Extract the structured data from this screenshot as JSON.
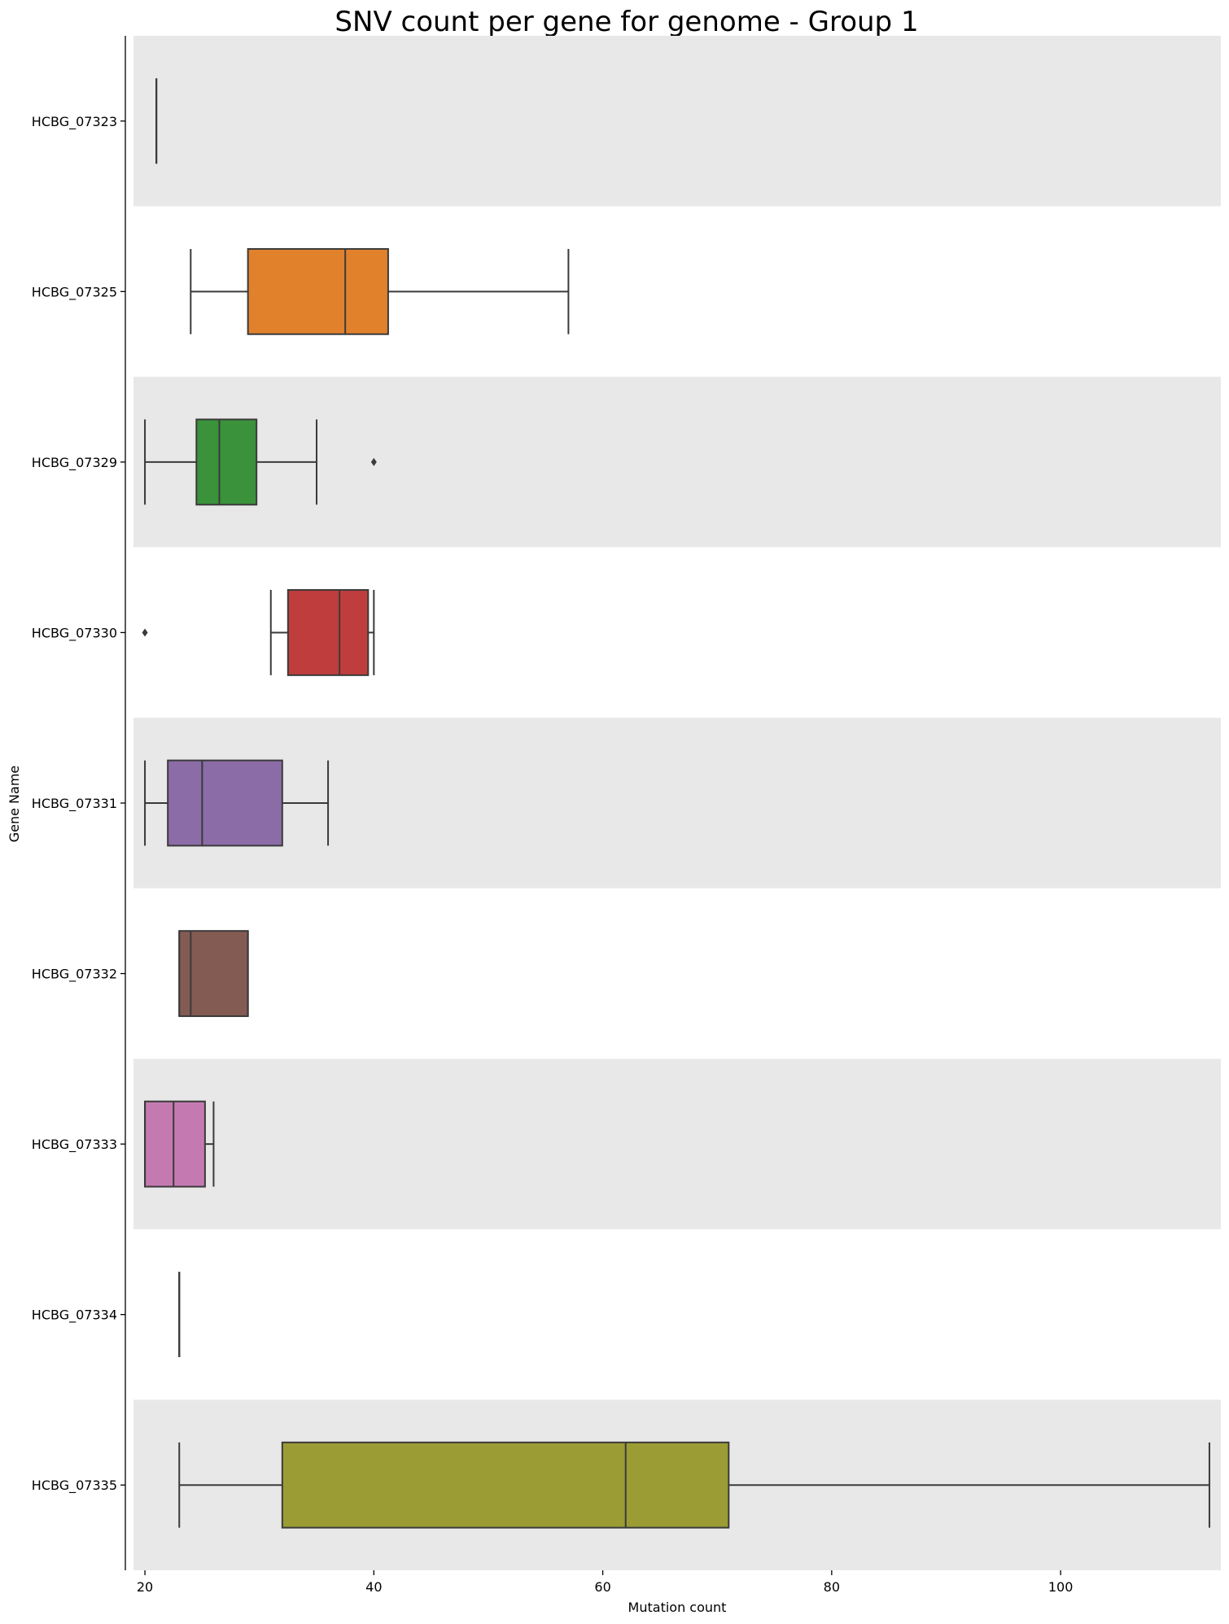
{
  "chart_data": {
    "type": "box",
    "title": "SNV count per gene for genome - Group 1",
    "xlabel": "Mutation count",
    "ylabel": "Gene Name",
    "xlim": [
      19,
      114
    ],
    "xticks": [
      20,
      40,
      60,
      80,
      100
    ],
    "orientation": "horizontal",
    "band_colors": [
      "#e8e8e8",
      "#ffffff"
    ],
    "box_edge_color": "#3a3a3a",
    "categories": [
      "HCBG_07323",
      "HCBG_07325",
      "HCBG_07329",
      "HCBG_07330",
      "HCBG_07331",
      "HCBG_07332",
      "HCBG_07333",
      "HCBG_07334",
      "HCBG_07335"
    ],
    "boxes": [
      {
        "gene": "HCBG_07323",
        "whisker_low": 21,
        "q1": 21,
        "median": 21,
        "q3": 21,
        "whisker_high": 21,
        "outliers": [],
        "color": "#1f77b4"
      },
      {
        "gene": "HCBG_07325",
        "whisker_low": 24,
        "q1": 29,
        "median": 37.5,
        "q3": 41.25,
        "whisker_high": 57,
        "outliers": [],
        "color": "#e1812c"
      },
      {
        "gene": "HCBG_07329",
        "whisker_low": 20,
        "q1": 24.5,
        "median": 26.5,
        "q3": 29.75,
        "whisker_high": 35,
        "outliers": [
          40
        ],
        "color": "#3a923a"
      },
      {
        "gene": "HCBG_07330",
        "whisker_low": 31,
        "q1": 32.5,
        "median": 37,
        "q3": 39.5,
        "whisker_high": 40,
        "outliers": [
          20
        ],
        "color": "#c03d3e"
      },
      {
        "gene": "HCBG_07331",
        "whisker_low": 20,
        "q1": 22,
        "median": 25,
        "q3": 32,
        "whisker_high": 36,
        "outliers": [],
        "color": "#8b6ca7"
      },
      {
        "gene": "HCBG_07332",
        "whisker_low": 23,
        "q1": 23,
        "median": 24,
        "q3": 29,
        "whisker_high": 29,
        "outliers": [],
        "color": "#845b53"
      },
      {
        "gene": "HCBG_07333",
        "whisker_low": 20,
        "q1": 20,
        "median": 22.5,
        "q3": 25.25,
        "whisker_high": 26,
        "outliers": [],
        "color": "#c47ab1"
      },
      {
        "gene": "HCBG_07334",
        "whisker_low": 23,
        "q1": 23,
        "median": 23,
        "q3": 23,
        "whisker_high": 23,
        "outliers": [],
        "color": "#7f7f7f"
      },
      {
        "gene": "HCBG_07335",
        "whisker_low": 23,
        "q1": 32,
        "median": 62,
        "q3": 71,
        "whisker_high": 113,
        "outliers": [],
        "color": "#9b9d34"
      }
    ],
    "grid": false,
    "legend": "none"
  }
}
